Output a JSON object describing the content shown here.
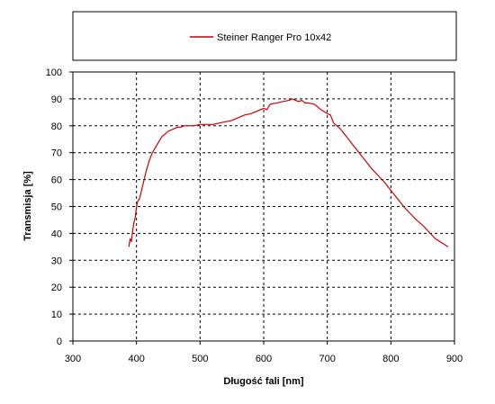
{
  "chart_data": {
    "type": "line",
    "title": "",
    "xlabel": "Długość fali [nm]",
    "ylabel": "Transmisja [%]",
    "xlim": [
      300,
      900
    ],
    "ylim": [
      0,
      100
    ],
    "xticks": [
      "300",
      "400",
      "500",
      "600",
      "700",
      "800",
      "900"
    ],
    "yticks": [
      "0",
      "10",
      "20",
      "30",
      "40",
      "50",
      "60",
      "70",
      "80",
      "90",
      "100"
    ],
    "grid": true,
    "legend": "top",
    "series": [
      {
        "name": "Steiner Ranger Pro 10x42",
        "color": "#cc0000",
        "x": [
          388,
          390,
          392,
          394,
          396,
          398,
          400,
          402,
          405,
          410,
          415,
          420,
          425,
          430,
          435,
          440,
          445,
          450,
          455,
          460,
          465,
          470,
          475,
          480,
          490,
          500,
          510,
          520,
          530,
          540,
          550,
          560,
          570,
          580,
          590,
          600,
          605,
          610,
          620,
          630,
          640,
          645,
          650,
          655,
          660,
          665,
          670,
          680,
          690,
          700,
          705,
          710,
          720,
          730,
          740,
          750,
          760,
          770,
          780,
          790,
          800,
          810,
          820,
          830,
          840,
          850,
          860,
          870,
          880,
          890
        ],
        "y": [
          35,
          38,
          37,
          41,
          44,
          46,
          50,
          52,
          53,
          58,
          63,
          67,
          70,
          72,
          74,
          76,
          77,
          78,
          78.5,
          79,
          79.5,
          79.5,
          80,
          80,
          80,
          80.5,
          80.5,
          80.5,
          81,
          81.5,
          82,
          83,
          84,
          84.5,
          85.5,
          86.5,
          86,
          88,
          88.5,
          89,
          89.5,
          90,
          89.5,
          89,
          89.5,
          88.5,
          88.5,
          88,
          86,
          84.5,
          84,
          81,
          79,
          76,
          73,
          70,
          67,
          64,
          61.5,
          59,
          56,
          53,
          50,
          47.5,
          45,
          43,
          40.5,
          38,
          36.5,
          35
        ]
      }
    ]
  }
}
